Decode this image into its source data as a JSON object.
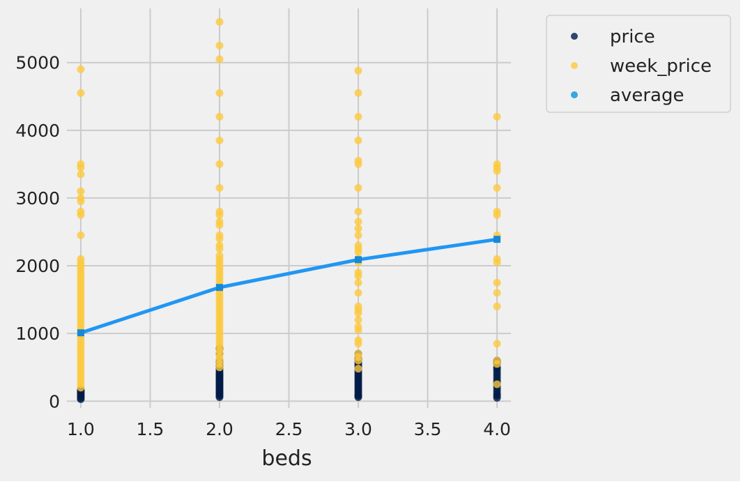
{
  "chart_data": {
    "type": "scatter",
    "title": "",
    "xlabel": "beds",
    "ylabel": "",
    "xlim": [
      0.9,
      4.1
    ],
    "ylim": [
      -100,
      5800
    ],
    "xticks": [
      1.0,
      1.5,
      2.0,
      2.5,
      3.0,
      3.5,
      4.0
    ],
    "yticks": [
      0,
      1000,
      2000,
      3000,
      4000,
      5000
    ],
    "grid": true,
    "legend_position": "outside-top-right",
    "series": [
      {
        "name": "price",
        "kind": "scatter",
        "color": "#001c48",
        "points": [
          [
            1,
            30
          ],
          [
            1,
            50
          ],
          [
            1,
            70
          ],
          [
            1,
            90
          ],
          [
            1,
            110
          ],
          [
            1,
            130
          ],
          [
            1,
            150
          ],
          [
            1,
            170
          ],
          [
            2,
            60
          ],
          [
            2,
            80
          ],
          [
            2,
            100
          ],
          [
            2,
            120
          ],
          [
            2,
            140
          ],
          [
            2,
            160
          ],
          [
            2,
            180
          ],
          [
            2,
            200
          ],
          [
            2,
            220
          ],
          [
            2,
            240
          ],
          [
            2,
            260
          ],
          [
            2,
            280
          ],
          [
            2,
            300
          ],
          [
            2,
            320
          ],
          [
            2,
            340
          ],
          [
            2,
            360
          ],
          [
            2,
            380
          ],
          [
            2,
            400
          ],
          [
            2,
            420
          ],
          [
            2,
            450
          ],
          [
            2,
            480
          ],
          [
            2,
            520
          ],
          [
            2,
            560
          ],
          [
            2,
            600
          ],
          [
            2,
            700
          ],
          [
            2,
            780
          ],
          [
            3,
            60
          ],
          [
            3,
            80
          ],
          [
            3,
            100
          ],
          [
            3,
            130
          ],
          [
            3,
            160
          ],
          [
            3,
            190
          ],
          [
            3,
            220
          ],
          [
            3,
            250
          ],
          [
            3,
            280
          ],
          [
            3,
            310
          ],
          [
            3,
            340
          ],
          [
            3,
            370
          ],
          [
            3,
            400
          ],
          [
            3,
            430
          ],
          [
            3,
            460
          ],
          [
            3,
            490
          ],
          [
            3,
            520
          ],
          [
            3,
            550
          ],
          [
            3,
            580
          ],
          [
            3,
            610
          ],
          [
            3,
            640
          ],
          [
            3,
            700
          ],
          [
            4,
            50
          ],
          [
            4,
            80
          ],
          [
            4,
            110
          ],
          [
            4,
            150
          ],
          [
            4,
            190
          ],
          [
            4,
            230
          ],
          [
            4,
            270
          ],
          [
            4,
            310
          ],
          [
            4,
            350
          ],
          [
            4,
            390
          ],
          [
            4,
            430
          ],
          [
            4,
            470
          ],
          [
            4,
            500
          ],
          [
            4,
            550
          ],
          [
            4,
            580
          ],
          [
            4,
            600
          ]
        ]
      },
      {
        "name": "week_price",
        "kind": "scatter",
        "color": "#fcc93f",
        "points": [
          [
            1,
            4900
          ],
          [
            1,
            4550
          ],
          [
            1,
            3500
          ],
          [
            1,
            3450
          ],
          [
            1,
            3350
          ],
          [
            1,
            3100
          ],
          [
            1,
            3000
          ],
          [
            1,
            2950
          ],
          [
            1,
            2800
          ],
          [
            1,
            2750
          ],
          [
            1,
            2450
          ],
          [
            1,
            2100
          ],
          [
            1,
            2050
          ],
          [
            1,
            2000
          ],
          [
            1,
            1950
          ],
          [
            1,
            1900
          ],
          [
            1,
            1850
          ],
          [
            1,
            1800
          ],
          [
            1,
            1750
          ],
          [
            1,
            1700
          ],
          [
            1,
            1650
          ],
          [
            1,
            1600
          ],
          [
            1,
            1550
          ],
          [
            1,
            1500
          ],
          [
            1,
            1450
          ],
          [
            1,
            1400
          ],
          [
            1,
            1350
          ],
          [
            1,
            1300
          ],
          [
            1,
            1250
          ],
          [
            1,
            1200
          ],
          [
            1,
            1150
          ],
          [
            1,
            1100
          ],
          [
            1,
            1050
          ],
          [
            1,
            1000
          ],
          [
            1,
            950
          ],
          [
            1,
            900
          ],
          [
            1,
            850
          ],
          [
            1,
            800
          ],
          [
            1,
            750
          ],
          [
            1,
            700
          ],
          [
            1,
            650
          ],
          [
            1,
            600
          ],
          [
            1,
            550
          ],
          [
            1,
            500
          ],
          [
            1,
            450
          ],
          [
            1,
            400
          ],
          [
            1,
            350
          ],
          [
            1,
            300
          ],
          [
            1,
            250
          ],
          [
            1,
            200
          ],
          [
            2,
            5600
          ],
          [
            2,
            5250
          ],
          [
            2,
            5050
          ],
          [
            2,
            4550
          ],
          [
            2,
            4200
          ],
          [
            2,
            3850
          ],
          [
            2,
            3500
          ],
          [
            2,
            3150
          ],
          [
            2,
            2800
          ],
          [
            2,
            2750
          ],
          [
            2,
            2650
          ],
          [
            2,
            2600
          ],
          [
            2,
            2450
          ],
          [
            2,
            2400
          ],
          [
            2,
            2300
          ],
          [
            2,
            2250
          ],
          [
            2,
            2150
          ],
          [
            2,
            2100
          ],
          [
            2,
            2050
          ],
          [
            2,
            2000
          ],
          [
            2,
            1950
          ],
          [
            2,
            1900
          ],
          [
            2,
            1850
          ],
          [
            2,
            1800
          ],
          [
            2,
            1750
          ],
          [
            2,
            1700
          ],
          [
            2,
            1650
          ],
          [
            2,
            1600
          ],
          [
            2,
            1550
          ],
          [
            2,
            1500
          ],
          [
            2,
            1450
          ],
          [
            2,
            1400
          ],
          [
            2,
            1350
          ],
          [
            2,
            1300
          ],
          [
            2,
            1250
          ],
          [
            2,
            1200
          ],
          [
            2,
            1150
          ],
          [
            2,
            1100
          ],
          [
            2,
            1050
          ],
          [
            2,
            1000
          ],
          [
            2,
            950
          ],
          [
            2,
            900
          ],
          [
            2,
            850
          ],
          [
            2,
            800
          ],
          [
            2,
            750
          ],
          [
            2,
            700
          ],
          [
            2,
            650
          ],
          [
            2,
            600
          ],
          [
            2,
            550
          ],
          [
            2,
            500
          ],
          [
            3,
            4880
          ],
          [
            3,
            4550
          ],
          [
            3,
            4200
          ],
          [
            3,
            3850
          ],
          [
            3,
            3550
          ],
          [
            3,
            3500
          ],
          [
            3,
            3150
          ],
          [
            3,
            2800
          ],
          [
            3,
            2650
          ],
          [
            3,
            2550
          ],
          [
            3,
            2450
          ],
          [
            3,
            2300
          ],
          [
            3,
            2250
          ],
          [
            3,
            2200
          ],
          [
            3,
            2100
          ],
          [
            3,
            2050
          ],
          [
            3,
            1900
          ],
          [
            3,
            1850
          ],
          [
            3,
            1750
          ],
          [
            3,
            1600
          ],
          [
            3,
            1400
          ],
          [
            3,
            1350
          ],
          [
            3,
            1300
          ],
          [
            3,
            1200
          ],
          [
            3,
            1100
          ],
          [
            3,
            1050
          ],
          [
            3,
            900
          ],
          [
            3,
            850
          ],
          [
            3,
            700
          ],
          [
            3,
            650
          ],
          [
            3,
            600
          ],
          [
            3,
            480
          ],
          [
            4,
            4200
          ],
          [
            4,
            3500
          ],
          [
            4,
            3450
          ],
          [
            4,
            3400
          ],
          [
            4,
            3150
          ],
          [
            4,
            2800
          ],
          [
            4,
            2750
          ],
          [
            4,
            2450
          ],
          [
            4,
            2400
          ],
          [
            4,
            2100
          ],
          [
            4,
            2050
          ],
          [
            4,
            1750
          ],
          [
            4,
            1600
          ],
          [
            4,
            1400
          ],
          [
            4,
            850
          ],
          [
            4,
            600
          ],
          [
            4,
            550
          ],
          [
            4,
            250
          ]
        ]
      },
      {
        "name": "average",
        "kind": "line",
        "color": "#2196f3",
        "marker_color": "#1489d8",
        "legend_color": "#3aa6dd",
        "points": [
          [
            1,
            1010
          ],
          [
            2,
            1680
          ],
          [
            3,
            2090
          ],
          [
            4,
            2390
          ]
        ]
      }
    ]
  }
}
